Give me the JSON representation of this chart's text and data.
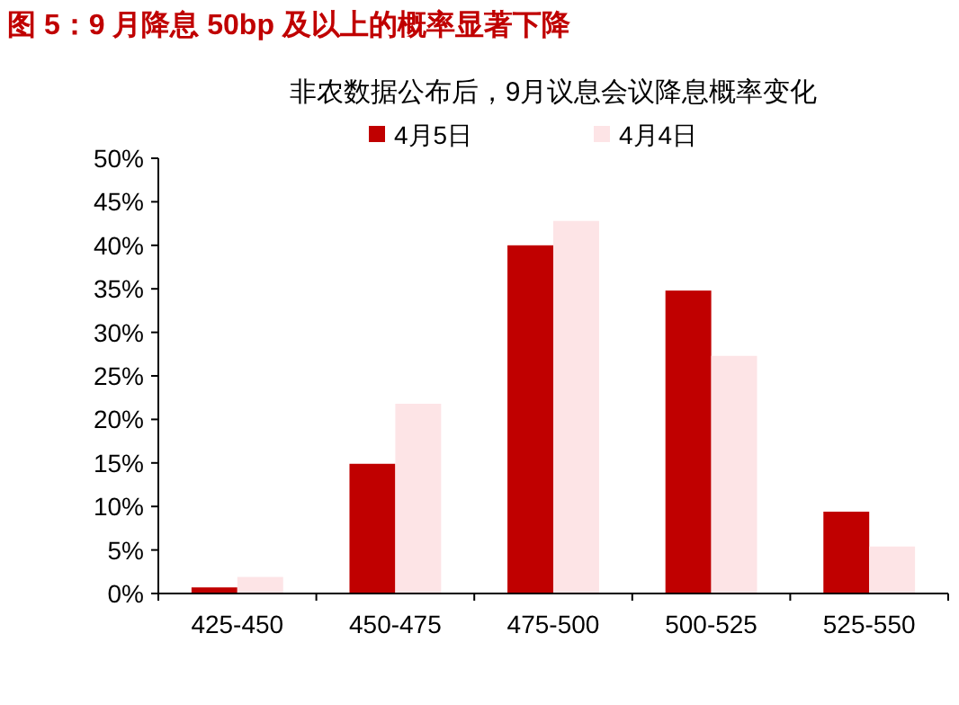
{
  "chart_data": {
    "type": "bar",
    "title": "图 5：9 月降息 50bp 及以上的概率显著下降",
    "subtitle": "非农数据公布后，9月议息会议降息概率变化",
    "categories": [
      "425-450",
      "450-475",
      "475-500",
      "500-525",
      "525-550"
    ],
    "series": [
      {
        "name": "4月5日",
        "color": "#c00000",
        "values": [
          0.7,
          14.9,
          40.0,
          34.8,
          9.4
        ]
      },
      {
        "name": "4月4日",
        "color": "#fde4e6",
        "values": [
          1.9,
          21.8,
          42.8,
          27.3,
          5.4
        ]
      }
    ],
    "ylim": [
      0,
      50
    ],
    "yticks": [
      {
        "value": 0,
        "label": "0%"
      },
      {
        "value": 5,
        "label": "5%"
      },
      {
        "value": 10,
        "label": "10%"
      },
      {
        "value": 15,
        "label": "15%"
      },
      {
        "value": 20,
        "label": "20%"
      },
      {
        "value": 25,
        "label": "25%"
      },
      {
        "value": 30,
        "label": "30%"
      },
      {
        "value": 35,
        "label": "35%"
      },
      {
        "value": 40,
        "label": "40%"
      },
      {
        "value": 45,
        "label": "45%"
      },
      {
        "value": 50,
        "label": "50%"
      }
    ],
    "legend": "top",
    "grid": false
  }
}
